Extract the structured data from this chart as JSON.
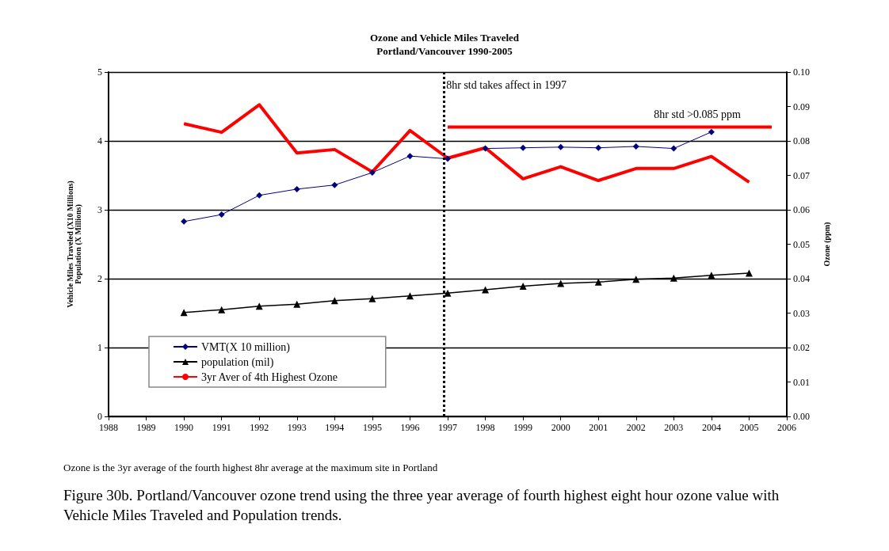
{
  "chart_data": {
    "type": "line",
    "title": "Ozone and Vehicle Miles Traveled",
    "subtitle": "Portland/Vancouver 1990-2005",
    "ylabel": "Vehicle Miles Traveled (X10 Millions)\nPopulation (X Millions)",
    "y2label": "Ozone (ppm)",
    "x": [
      1990,
      1991,
      1992,
      1993,
      1994,
      1995,
      1996,
      1997,
      1998,
      1999,
      2000,
      2001,
      2002,
      2003,
      2004,
      2005
    ],
    "series": [
      {
        "name": "VMT(X 10 million)",
        "color": "#000080",
        "marker": "diamond",
        "values": [
          2.83,
          2.93,
          3.21,
          3.3,
          3.36,
          3.54,
          3.78,
          3.74,
          3.89,
          3.9,
          3.91,
          3.9,
          3.92,
          3.89,
          4.13,
          null
        ]
      },
      {
        "name": "population (mil)",
        "color": "#000000",
        "marker": "triangle",
        "values": [
          1.51,
          1.55,
          1.6,
          1.63,
          1.68,
          1.71,
          1.75,
          1.79,
          1.84,
          1.89,
          1.93,
          1.95,
          1.99,
          2.01,
          2.05,
          2.08
        ]
      },
      {
        "name": "3yr Aver of 4th Highest Ozone",
        "color": "#ff0000",
        "marker": "none",
        "axis": "y2",
        "values": [
          0.085,
          0.0825,
          0.0905,
          0.0765,
          0.0775,
          0.071,
          0.083,
          0.075,
          0.078,
          0.069,
          0.0725,
          0.0685,
          0.072,
          0.072,
          0.0755,
          0.068
        ]
      },
      {
        "color": "#ff0000",
        "marker": "none",
        "axis": "y2",
        "x": [
          1997,
          2005.6
        ],
        "values": [
          0.084,
          0.084
        ]
      }
    ],
    "xlim": [
      1988,
      2006
    ],
    "xticks": [
      1988,
      1989,
      1990,
      1991,
      1992,
      1993,
      1994,
      1995,
      1996,
      1997,
      1998,
      1999,
      2000,
      2001,
      2002,
      2003,
      2004,
      2005,
      2006
    ],
    "ylim": [
      0,
      5
    ],
    "yticks": [
      0,
      1,
      2,
      3,
      4,
      5
    ],
    "y2lim": [
      0,
      0.1
    ],
    "y2ticks": [
      {
        "value": 0,
        "label": "0.00"
      },
      {
        "value": 0.01,
        "label": "0.01"
      },
      {
        "value": 0.02,
        "label": "0.02"
      },
      {
        "value": 0.03,
        "label": "0.03"
      },
      {
        "value": 0.04,
        "label": "0.04"
      },
      {
        "value": 0.05,
        "label": "0.05"
      },
      {
        "value": 0.06,
        "label": "0.06"
      },
      {
        "value": 0.07,
        "label": "0.07"
      },
      {
        "value": 0.08,
        "label": "0.08"
      },
      {
        "value": 0.09,
        "label": "0.09"
      },
      {
        "value": 0.1,
        "label": "0.10"
      }
    ],
    "ref_lines": [
      {
        "axis": "x",
        "value": 1996.9,
        "label": "8hr std takes affect in 1997",
        "color": "#000000",
        "line_style": "dotted"
      }
    ],
    "annotations": [
      "8hr std >0.085 ppm",
      "Ozone is the 3yr average  of the fourth highest 8hr average at the maximum site in Portland",
      "Figure 30b. Portland/Vancouver ozone trend using the three year average of fourth highest eight hour ozone value with Vehicle Miles Traveled and Population trends."
    ],
    "grid": "y",
    "legend": "bottom left",
    "line_style": "solid"
  }
}
